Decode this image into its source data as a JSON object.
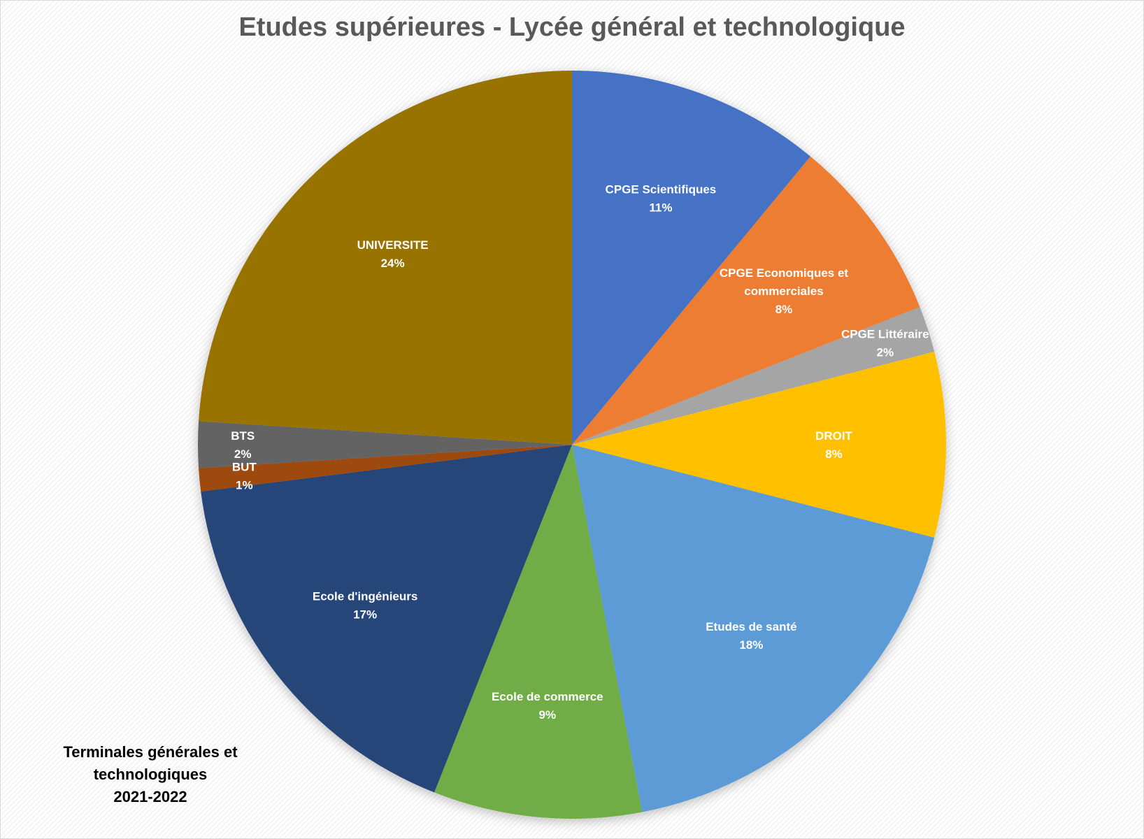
{
  "chart_data": {
    "type": "pie",
    "title": "Etudes supérieures - Lycée général et technologique",
    "slices": [
      {
        "label": "CPGE Scientifiques",
        "value_label": "11%",
        "value": 11,
        "color": "#4472C4"
      },
      {
        "label": "CPGE Economiques et commerciales",
        "value_label": "8%",
        "value": 8,
        "color": "#ED7D31"
      },
      {
        "label": "CPGE Littéraire",
        "value_label": "2%",
        "value": 2,
        "color": "#A5A5A5"
      },
      {
        "label": "DROIT",
        "value_label": "8%",
        "value": 8,
        "color": "#FFC000"
      },
      {
        "label": "Etudes de santé",
        "value_label": "18%",
        "value": 18,
        "color": "#5B9BD5"
      },
      {
        "label": "Ecole de commerce",
        "value_label": "9%",
        "value": 9,
        "color": "#70AD47"
      },
      {
        "label": "Ecole d'ingénieurs",
        "value_label": "17%",
        "value": 17,
        "color": "#264478"
      },
      {
        "label": "BUT",
        "value_label": "1%",
        "value": 1,
        "color": "#9E480E"
      },
      {
        "label": "BTS",
        "value_label": "2%",
        "value": 2,
        "color": "#636363"
      },
      {
        "label": "UNIVERSITE",
        "value_label": "24%",
        "value": 24,
        "color": "#997300"
      }
    ]
  },
  "footnote": {
    "line1": "Terminales générales et",
    "line2": "technologiques",
    "line3": "2021-2022"
  }
}
